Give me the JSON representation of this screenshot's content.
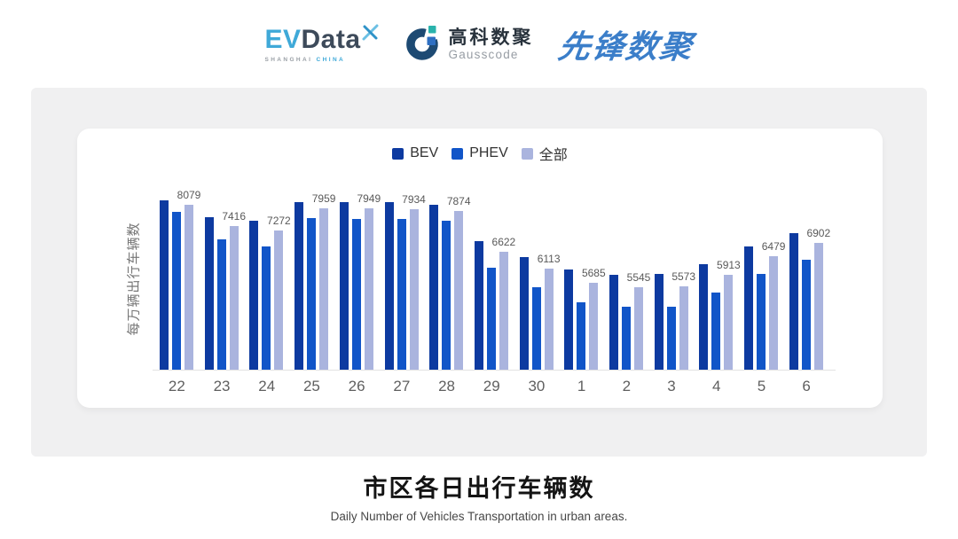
{
  "brand": {
    "evdata": {
      "ev": "EV",
      "data": "Data",
      "tagline_left": "SHANGHAI",
      "tagline_right": "CHINA",
      "ev_color": "#3fa9d8",
      "data_color": "#3d4a5a"
    },
    "gausscode": {
      "cn": "高科数聚",
      "en": "Gausscode",
      "navy": "#1d4a73",
      "teal": "#2ab3ac",
      "blue": "#2e6fc2"
    },
    "pioneer": {
      "text": "先锋数聚",
      "color": "#3b7ec9"
    }
  },
  "chart_data": {
    "type": "bar",
    "title": "市区各日出行车辆数",
    "subtitle": "Daily Number of Vehicles Transportation in urban areas.",
    "xlabel": "",
    "ylabel": "每万辆出行车辆数",
    "categories": [
      "22",
      "23",
      "24",
      "25",
      "26",
      "27",
      "28",
      "29",
      "30",
      "1",
      "2",
      "3",
      "4",
      "5",
      "6"
    ],
    "series": [
      {
        "name": "BEV",
        "color": "#0d3aa0",
        "values": [
          8210,
          7680,
          7570,
          8160,
          8140,
          8150,
          8060,
          6940,
          6460,
          6080,
          5920,
          5950,
          6250,
          6800,
          7210
        ]
      },
      {
        "name": "PHEV",
        "color": "#1155c8",
        "values": [
          7850,
          7000,
          6780,
          7660,
          7640,
          7630,
          7570,
          6130,
          5530,
          5070,
          4930,
          4930,
          5360,
          5950,
          6370
        ]
      },
      {
        "name": "全部",
        "color": "#aab4de",
        "data_labels": true,
        "values": [
          8079,
          7416,
          7272,
          7959,
          7949,
          7934,
          7874,
          6622,
          6113,
          5685,
          5545,
          5573,
          5913,
          6479,
          6902
        ]
      }
    ],
    "ylim": [
      3000,
      8450
    ],
    "grid": false,
    "legend_position": "top",
    "note": "BEV and PHEV values estimated from bar heights; 全部 values are the printed data labels"
  },
  "footer": {
    "title": "市区各日出行车辆数",
    "subtitle": "Daily Number of Vehicles Transportation in urban areas."
  }
}
